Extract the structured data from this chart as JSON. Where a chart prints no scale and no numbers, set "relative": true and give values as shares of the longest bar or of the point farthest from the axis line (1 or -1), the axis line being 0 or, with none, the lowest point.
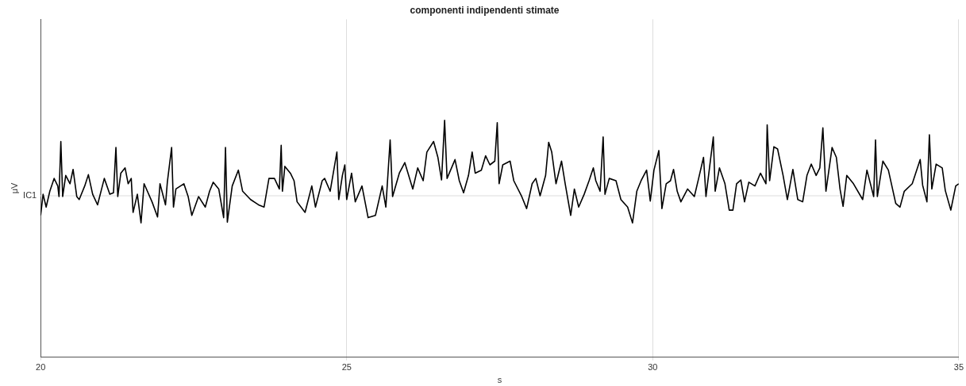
{
  "chart_data": {
    "type": "line",
    "title": "componenti indipendenti stimate",
    "xlabel": "s",
    "ylabel": "μV",
    "relative": true,
    "xlim": [
      20,
      35
    ],
    "xticks": [
      20,
      25,
      30,
      35
    ],
    "grid": "x",
    "marker": "none",
    "ref_lines": [
      {
        "axis": "y",
        "value": 0,
        "label": "IC1",
        "color": "#dddddd"
      }
    ],
    "x": [
      20.0,
      20.04,
      20.09,
      20.15,
      20.22,
      20.28,
      20.3,
      20.33,
      20.36,
      20.41,
      20.48,
      20.53,
      20.59,
      20.63,
      20.72,
      20.78,
      20.85,
      20.93,
      21.04,
      21.13,
      21.19,
      21.23,
      21.26,
      21.31,
      21.38,
      21.43,
      21.48,
      21.51,
      21.58,
      21.64,
      21.69,
      21.82,
      21.91,
      21.95,
      22.04,
      22.07,
      22.14,
      22.17,
      22.21,
      22.34,
      22.41,
      22.47,
      22.58,
      22.69,
      22.76,
      22.82,
      22.91,
      22.99,
      23.02,
      23.05,
      23.13,
      23.23,
      23.3,
      23.43,
      23.56,
      23.65,
      23.73,
      23.82,
      23.9,
      23.93,
      23.95,
      23.99,
      24.08,
      24.14,
      24.19,
      24.32,
      24.43,
      24.49,
      24.6,
      24.64,
      24.73,
      24.84,
      24.87,
      24.93,
      24.97,
      25.0,
      25.08,
      25.14,
      25.25,
      25.35,
      25.47,
      25.58,
      25.64,
      25.71,
      25.75,
      25.86,
      25.95,
      26.08,
      26.16,
      26.25,
      26.31,
      26.42,
      26.49,
      26.55,
      26.6,
      26.64,
      26.77,
      26.84,
      26.91,
      26.99,
      27.05,
      27.1,
      27.2,
      27.27,
      27.34,
      27.42,
      27.46,
      27.49,
      27.55,
      27.67,
      27.73,
      27.86,
      27.94,
      28.03,
      28.09,
      28.16,
      28.25,
      28.3,
      28.35,
      28.42,
      28.51,
      28.57,
      28.66,
      28.72,
      28.79,
      28.88,
      28.96,
      29.03,
      29.07,
      29.14,
      29.19,
      29.22,
      29.29,
      29.4,
      29.48,
      29.59,
      29.67,
      29.74,
      29.81,
      29.9,
      29.96,
      30.02,
      30.1,
      30.15,
      30.22,
      30.29,
      30.34,
      30.4,
      30.46,
      30.57,
      30.68,
      30.75,
      30.83,
      30.87,
      30.99,
      31.02,
      31.09,
      31.18,
      31.25,
      31.31,
      31.37,
      31.44,
      31.5,
      31.57,
      31.67,
      31.76,
      31.85,
      31.87,
      31.91,
      31.98,
      32.04,
      32.13,
      32.2,
      32.29,
      32.37,
      32.45,
      32.52,
      32.59,
      32.67,
      32.73,
      32.78,
      32.83,
      32.93,
      33.0,
      33.06,
      33.11,
      33.17,
      33.28,
      33.43,
      33.5,
      33.61,
      33.64,
      33.67,
      33.76,
      33.85,
      33.97,
      34.04,
      34.11,
      34.24,
      34.37,
      34.41,
      34.48,
      34.52,
      34.56,
      34.63,
      34.73,
      34.78,
      34.87,
      34.95,
      35.0
    ],
    "series": [
      {
        "color": "#000000",
        "values": [
          -0.26,
          0.02,
          -0.15,
          0.06,
          0.23,
          0.13,
          -0.01,
          0.72,
          -0.01,
          0.27,
          0.16,
          0.35,
          -0.01,
          -0.05,
          0.13,
          0.28,
          0.02,
          -0.12,
          0.23,
          0.02,
          0.04,
          0.64,
          -0.01,
          0.3,
          0.37,
          0.16,
          0.23,
          -0.22,
          0.02,
          -0.36,
          0.16,
          -0.08,
          -0.28,
          0.16,
          -0.12,
          0.18,
          0.64,
          -0.15,
          0.09,
          0.16,
          -0.01,
          -0.26,
          -0.01,
          -0.15,
          0.06,
          0.18,
          0.09,
          -0.29,
          0.64,
          -0.35,
          0.13,
          0.34,
          0.06,
          -0.05,
          -0.12,
          -0.15,
          0.23,
          0.23,
          0.09,
          0.67,
          0.06,
          0.39,
          0.3,
          0.2,
          -0.08,
          -0.22,
          0.13,
          -0.15,
          0.2,
          0.23,
          0.06,
          0.58,
          -0.05,
          0.27,
          0.41,
          -0.05,
          0.3,
          -0.08,
          0.13,
          -0.29,
          -0.26,
          0.13,
          -0.15,
          0.74,
          -0.01,
          0.3,
          0.44,
          0.09,
          0.37,
          0.2,
          0.58,
          0.72,
          0.51,
          0.21,
          1.0,
          0.23,
          0.48,
          0.2,
          0.04,
          0.27,
          0.58,
          0.3,
          0.34,
          0.53,
          0.41,
          0.46,
          0.97,
          0.16,
          0.41,
          0.46,
          0.2,
          -0.01,
          -0.17,
          0.16,
          0.23,
          0.0,
          0.27,
          0.71,
          0.58,
          0.16,
          0.46,
          0.16,
          -0.26,
          0.09,
          -0.15,
          0.02,
          0.2,
          0.37,
          0.2,
          0.06,
          0.78,
          0.02,
          0.23,
          0.2,
          -0.05,
          -0.15,
          -0.36,
          0.06,
          0.2,
          0.34,
          -0.07,
          0.34,
          0.6,
          -0.17,
          0.16,
          0.2,
          0.35,
          0.06,
          -0.08,
          0.09,
          -0.01,
          0.23,
          0.51,
          -0.01,
          0.78,
          0.06,
          0.37,
          0.16,
          -0.19,
          -0.19,
          0.16,
          0.21,
          -0.08,
          0.18,
          0.13,
          0.3,
          0.16,
          0.94,
          0.2,
          0.65,
          0.62,
          0.27,
          -0.05,
          0.35,
          -0.05,
          -0.08,
          0.27,
          0.42,
          0.27,
          0.37,
          0.9,
          0.06,
          0.64,
          0.51,
          0.09,
          -0.14,
          0.27,
          0.16,
          -0.05,
          0.34,
          -0.01,
          0.74,
          -0.01,
          0.46,
          0.34,
          -0.1,
          -0.15,
          0.06,
          0.16,
          0.48,
          0.14,
          -0.08,
          0.81,
          0.09,
          0.42,
          0.37,
          0.07,
          -0.19,
          0.13,
          0.16
        ]
      }
    ]
  }
}
